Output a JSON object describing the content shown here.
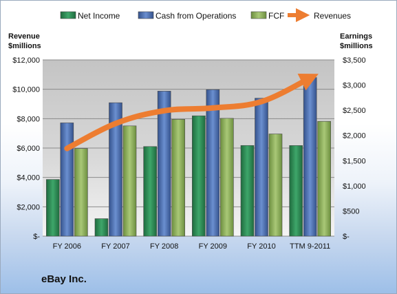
{
  "chart_data": {
    "type": "bar",
    "categories": [
      "FY 2006",
      "FY 2007",
      "FY 2008",
      "FY 2009",
      "FY 2010",
      "TTM 9-2011"
    ],
    "series": [
      {
        "name": "Net Income",
        "axis": "right",
        "values": [
          1126,
          348,
          1780,
          2390,
          1801,
          1800
        ],
        "color": "#2e8b57"
      },
      {
        "name": "Cash from Operations",
        "axis": "right",
        "values": [
          2250,
          2650,
          2880,
          2910,
          2740,
          3150
        ],
        "color": "#4a6fb5"
      },
      {
        "name": "FCF",
        "axis": "right",
        "values": [
          1740,
          2190,
          2320,
          2340,
          2030,
          2280
        ],
        "color": "#8cb05a"
      },
      {
        "name": "Revenues",
        "axis": "left",
        "type": "line",
        "values": [
          5970,
          7670,
          8540,
          8730,
          9160,
          10770
        ],
        "color": "#ed7d31"
      }
    ],
    "left_axis": {
      "title": "Revenue\n$millions",
      "ylim": [
        0,
        12000
      ],
      "ticks": [
        0,
        2000,
        4000,
        6000,
        8000,
        10000,
        12000
      ],
      "tick_labels": [
        "$-",
        "$2,000",
        "$4,000",
        "$6,000",
        "$8,000",
        "$10,000",
        "$12,000"
      ]
    },
    "right_axis": {
      "title": "Earnings\n$millions",
      "ylim": [
        0,
        3500
      ],
      "ticks": [
        0,
        500,
        1000,
        1500,
        2000,
        2500,
        3000,
        3500
      ],
      "tick_labels": [
        "$-",
        "$500",
        "$1,000",
        "$1,500",
        "$2,000",
        "$2,500",
        "$3,000",
        "$3,500"
      ]
    },
    "legend_position": "top",
    "grid": true
  },
  "company_label": "eBay Inc."
}
